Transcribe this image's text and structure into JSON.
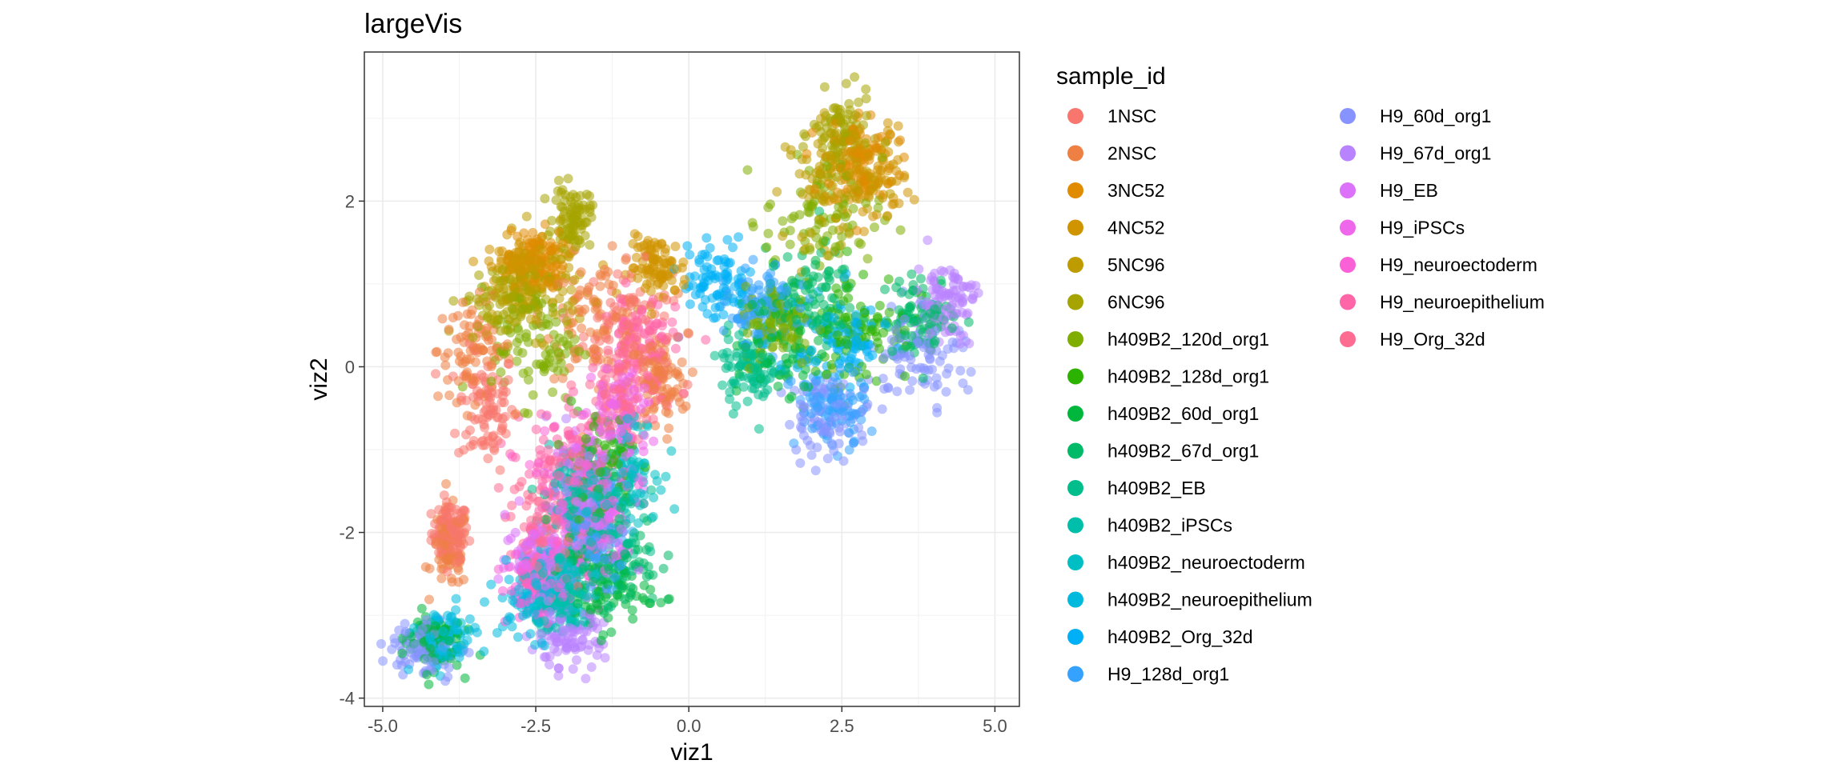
{
  "chart_data": {
    "type": "scatter",
    "title": "largeVis",
    "xlabel": "viz1",
    "ylabel": "viz2",
    "xlim": [
      -5.3,
      5.4
    ],
    "ylim": [
      -4.1,
      3.8
    ],
    "x_ticks": [
      -5.0,
      -2.5,
      0.0,
      2.5,
      5.0
    ],
    "x_tick_labels": [
      "-5.0",
      "-2.5",
      "0.0",
      "2.5",
      "5.0"
    ],
    "y_ticks": [
      -4,
      -2,
      0,
      2
    ],
    "y_tick_labels": [
      "-4",
      "-2",
      "0",
      "2"
    ],
    "grid": true,
    "legend_title": "sample_id",
    "legend_position": "right",
    "series": [
      {
        "name": "1NSC",
        "color": "#F8766D",
        "regions": [
          [
            -3.9,
            -2.0,
            0.25,
            0.3
          ],
          [
            -3.3,
            -0.5,
            0.4,
            0.6
          ],
          [
            -1.0,
            0.5,
            0.6,
            0.6
          ]
        ]
      },
      {
        "name": "2NSC",
        "color": "#EE8043",
        "regions": [
          [
            -3.5,
            0.2,
            0.5,
            0.5
          ],
          [
            -3.9,
            -2.2,
            0.25,
            0.4
          ],
          [
            -1.5,
            0.6,
            0.7,
            0.6
          ],
          [
            -0.5,
            -0.2,
            0.4,
            0.5
          ]
        ]
      },
      {
        "name": "3NC52",
        "color": "#E08B00",
        "regions": [
          [
            2.8,
            2.5,
            0.5,
            0.5
          ],
          [
            -2.5,
            1.3,
            0.4,
            0.3
          ]
        ]
      },
      {
        "name": "4NC52",
        "color": "#D09400",
        "regions": [
          [
            3.0,
            2.3,
            0.5,
            0.5
          ],
          [
            -2.8,
            1.2,
            0.4,
            0.3
          ],
          [
            -0.5,
            1.2,
            0.4,
            0.3
          ]
        ]
      },
      {
        "name": "5NC96",
        "color": "#BE9C00",
        "regions": [
          [
            2.3,
            2.2,
            0.6,
            0.6
          ],
          [
            -2.5,
            1.0,
            0.6,
            0.5
          ]
        ]
      },
      {
        "name": "6NC96",
        "color": "#A5A400",
        "regions": [
          [
            2.5,
            2.8,
            0.4,
            0.4
          ],
          [
            -1.9,
            1.8,
            0.25,
            0.3
          ],
          [
            -3.0,
            0.8,
            0.6,
            0.4
          ]
        ]
      },
      {
        "name": "h409B2_120d_org1",
        "color": "#7FAD00",
        "regions": [
          [
            2.2,
            1.8,
            0.8,
            0.6
          ],
          [
            -2.5,
            0.3,
            0.6,
            0.6
          ],
          [
            1.5,
            0.5,
            0.5,
            0.4
          ]
        ]
      },
      {
        "name": "h409B2_128d_org1",
        "color": "#2CB300",
        "regions": [
          [
            2.8,
            0.5,
            0.7,
            0.6
          ],
          [
            -1.5,
            -1.2,
            0.5,
            0.6
          ]
        ]
      },
      {
        "name": "h409B2_60d_org1",
        "color": "#00B73D",
        "regions": [
          [
            1.5,
            0.3,
            0.6,
            0.6
          ],
          [
            -1.5,
            -2.7,
            0.7,
            0.4
          ],
          [
            -4.2,
            -3.3,
            0.4,
            0.3
          ]
        ]
      },
      {
        "name": "h409B2_67d_org1",
        "color": "#00BA68",
        "regions": [
          [
            2.0,
            0.8,
            0.6,
            0.5
          ],
          [
            -1.2,
            -2.3,
            0.6,
            0.5
          ],
          [
            3.8,
            0.6,
            0.5,
            0.4
          ]
        ]
      },
      {
        "name": "h409B2_EB",
        "color": "#00BD8C",
        "regions": [
          [
            -1.5,
            -1.8,
            0.6,
            0.6
          ],
          [
            1.0,
            0.0,
            0.4,
            0.4
          ]
        ]
      },
      {
        "name": "h409B2_iPSCs",
        "color": "#00BFAA",
        "regions": [
          [
            -1.8,
            -1.6,
            0.4,
            0.5
          ],
          [
            -2.0,
            -2.9,
            0.4,
            0.3
          ]
        ]
      },
      {
        "name": "h409B2_neuroectoderm",
        "color": "#00BFC4",
        "regions": [
          [
            -2.2,
            -2.6,
            0.5,
            0.4
          ],
          [
            -1.0,
            -1.2,
            0.4,
            0.5
          ]
        ]
      },
      {
        "name": "h409B2_neuroepithelium",
        "color": "#00BADE",
        "regions": [
          [
            -2.5,
            -2.8,
            0.5,
            0.4
          ],
          [
            -4.0,
            -3.3,
            0.4,
            0.3
          ]
        ]
      },
      {
        "name": "h409B2_Org_32d",
        "color": "#00B0F6",
        "regions": [
          [
            0.5,
            1.0,
            0.5,
            0.4
          ],
          [
            2.5,
            0.3,
            0.6,
            0.5
          ]
        ]
      },
      {
        "name": "H9_128d_org1",
        "color": "#35A2FF",
        "regions": [
          [
            2.3,
            -0.5,
            0.5,
            0.4
          ],
          [
            1.2,
            0.7,
            0.5,
            0.4
          ],
          [
            -1.5,
            -2.0,
            0.5,
            0.5
          ]
        ]
      },
      {
        "name": "H9_60d_org1",
        "color": "#8794FF",
        "regions": [
          [
            2.3,
            -0.6,
            0.6,
            0.4
          ],
          [
            3.8,
            0.2,
            0.6,
            0.5
          ],
          [
            -4.3,
            -3.4,
            0.5,
            0.3
          ]
        ]
      },
      {
        "name": "H9_67d_org1",
        "color": "#B983FF",
        "regions": [
          [
            4.2,
            0.8,
            0.4,
            0.4
          ],
          [
            -1.8,
            -1.8,
            0.6,
            0.7
          ],
          [
            -2.0,
            -3.3,
            0.5,
            0.3
          ]
        ]
      },
      {
        "name": "H9_EB",
        "color": "#DC71FA",
        "regions": [
          [
            -1.5,
            -1.6,
            0.6,
            0.7
          ],
          [
            -2.5,
            -2.3,
            0.4,
            0.4
          ]
        ]
      },
      {
        "name": "H9_iPSCs",
        "color": "#EF67EB",
        "regions": [
          [
            -1.5,
            -1.9,
            0.5,
            0.5
          ],
          [
            -1.1,
            -0.6,
            0.4,
            0.5
          ]
        ]
      },
      {
        "name": "H9_neuroectoderm",
        "color": "#FB61D7",
        "regions": [
          [
            -1.8,
            -1.4,
            0.6,
            0.6
          ],
          [
            -2.5,
            -2.6,
            0.4,
            0.4
          ]
        ]
      },
      {
        "name": "H9_neuroepithelium",
        "color": "#FF66A8",
        "regions": [
          [
            -2.0,
            -1.2,
            0.6,
            0.6
          ],
          [
            -0.8,
            0.3,
            0.5,
            0.5
          ]
        ]
      },
      {
        "name": "H9_Org_32d",
        "color": "#FF6C91",
        "regions": [
          [
            -2.3,
            -2.0,
            0.6,
            0.6
          ],
          [
            -1.0,
            -0.3,
            0.5,
            0.5
          ]
        ]
      }
    ]
  }
}
